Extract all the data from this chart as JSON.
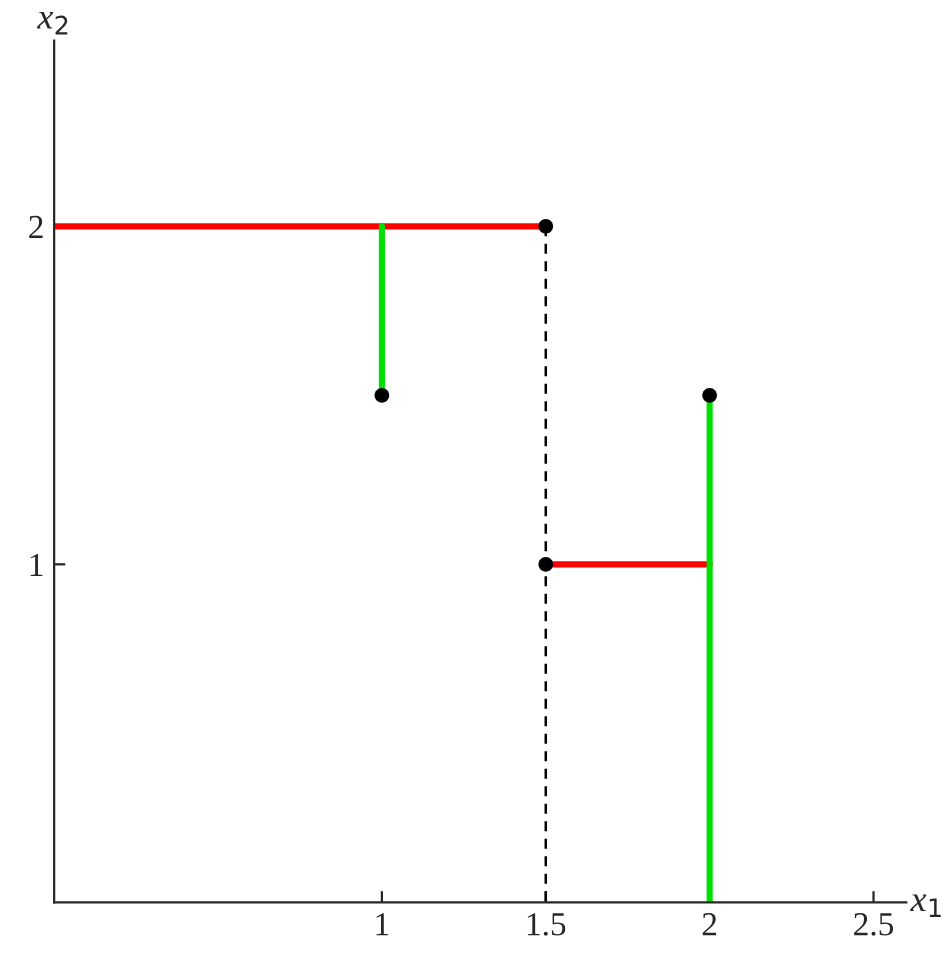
{
  "chart_data": {
    "type": "line",
    "xlabel": "x$_{1}$",
    "ylabel": "x$_{2}$",
    "xlim": [
      0,
      2.6
    ],
    "ylim": [
      0,
      2.55
    ],
    "xticks": [
      1,
      1.5,
      2,
      2.5
    ],
    "yticks": [
      1,
      2
    ],
    "grid": false,
    "legend": false,
    "series": [
      {
        "color": "#ff0000",
        "x": [
          0,
          1.5
        ],
        "values": [
          2,
          2
        ],
        "line_style": "solid"
      },
      {
        "color": "#00e000",
        "x": [
          1,
          1
        ],
        "values": [
          2,
          1.5
        ],
        "line_style": "solid"
      },
      {
        "color": "#000000",
        "x": [
          1.5,
          1.5
        ],
        "values": [
          2,
          0
        ],
        "line_style": "dashed"
      },
      {
        "color": "#ff0000",
        "x": [
          1.5,
          2
        ],
        "values": [
          1,
          1
        ],
        "line_style": "solid"
      },
      {
        "color": "#00e000",
        "x": [
          2,
          2
        ],
        "values": [
          1.5,
          0
        ],
        "line_style": "solid"
      },
      {
        "type": "scatter",
        "color": "#000000",
        "x": [
          1,
          1.5,
          1.5,
          2
        ],
        "values": [
          1.5,
          2,
          1,
          1.5
        ],
        "marker": "circle"
      }
    ]
  }
}
